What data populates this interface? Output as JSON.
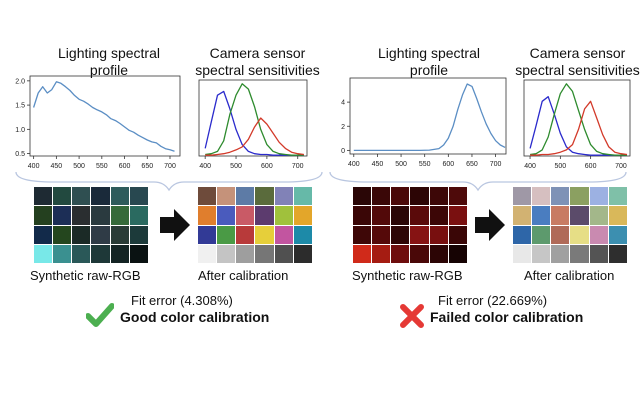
{
  "left": {
    "lighting_title": [
      "Lighting spectral",
      "profile"
    ],
    "camera_title": [
      "Camera sensor",
      "spectral sensitivities"
    ],
    "raw_label": "Synthetic raw-RGB",
    "after_label": "After calibration",
    "fit_error": "Fit error (4.308%)",
    "verdict": "Good color calibration",
    "verdict_icon": "check-mark-icon",
    "verdict_color": "#4caf50",
    "lighting_chart": {
      "type": "line",
      "x_ticks": [
        "400",
        "450",
        "500",
        "550",
        "600",
        "650",
        "700"
      ],
      "y_ticks": [
        "0.5",
        "1.0",
        "1.5",
        "2.0"
      ],
      "x": [
        400,
        410,
        420,
        430,
        440,
        450,
        460,
        470,
        480,
        490,
        500,
        510,
        520,
        530,
        540,
        550,
        560,
        570,
        580,
        590,
        600,
        610,
        620,
        630,
        640,
        650,
        660,
        670,
        680,
        690,
        700,
        710
      ],
      "y": [
        1.45,
        1.75,
        1.88,
        1.75,
        1.82,
        1.98,
        1.95,
        1.88,
        1.8,
        1.7,
        1.62,
        1.58,
        1.52,
        1.45,
        1.4,
        1.36,
        1.3,
        1.22,
        1.18,
        1.12,
        1.05,
        0.98,
        0.94,
        0.88,
        0.83,
        0.78,
        0.74,
        0.72,
        0.65,
        0.6,
        0.58,
        0.55
      ],
      "color": "#5b8ec4"
    },
    "camera_chart": {
      "type": "line",
      "x_ticks": [
        "400",
        "500",
        "600",
        "700"
      ],
      "x": [
        400,
        420,
        440,
        460,
        480,
        500,
        520,
        540,
        560,
        580,
        600,
        620,
        640,
        660,
        680,
        700,
        720
      ],
      "series": [
        {
          "color": "#2b2bcc",
          "values": [
            0.1,
            0.45,
            0.8,
            0.85,
            0.62,
            0.35,
            0.15,
            0.06,
            0.03,
            0.02,
            0.02,
            0.01,
            0.01,
            0.01,
            0.01,
            0.01,
            0.01
          ]
        },
        {
          "color": "#2e8b2e",
          "values": [
            0.02,
            0.03,
            0.06,
            0.2,
            0.55,
            0.8,
            0.95,
            0.88,
            0.65,
            0.35,
            0.15,
            0.06,
            0.03,
            0.02,
            0.01,
            0.01,
            0.01
          ]
        },
        {
          "color": "#d33a2a",
          "values": [
            0.01,
            0.01,
            0.02,
            0.03,
            0.05,
            0.08,
            0.12,
            0.22,
            0.38,
            0.5,
            0.42,
            0.3,
            0.18,
            0.1,
            0.05,
            0.03,
            0.02
          ]
        }
      ]
    },
    "raw_colors": [
      "#1e2a33",
      "#22493f",
      "#2f4f51",
      "#1a2a3a",
      "#2e5b5b",
      "#284850",
      "#24401f",
      "#1c2e56",
      "#2a2e30",
      "#2a3a3f",
      "#356a3a",
      "#2a6a60",
      "#122a4a",
      "#24461e",
      "#1b2a26",
      "#2f3b46",
      "#293b36",
      "#1c3a3a",
      "#78e8e8",
      "#3a9090",
      "#2a5858",
      "#1e3838",
      "#142424",
      "#0a1212"
    ],
    "after_colors": [
      "#6e4b3b",
      "#c5927a",
      "#5d7ba6",
      "#5a6b3c",
      "#8182b7",
      "#66b9a8",
      "#e07e2d",
      "#4a5bbd",
      "#c95a66",
      "#5c3b6e",
      "#a0c13c",
      "#e3a62a",
      "#323a96",
      "#4a9a45",
      "#b83a3a",
      "#e6cf3a",
      "#c255a0",
      "#1d8aa8",
      "#f0f0f0",
      "#c4c4c4",
      "#9e9e9e",
      "#767676",
      "#505050",
      "#2c2c2c"
    ]
  },
  "right": {
    "lighting_title": [
      "Lighting spectral",
      "profile"
    ],
    "camera_title": [
      "Camera sensor",
      "spectral sensitivities"
    ],
    "raw_label": "Synthetic raw-RGB",
    "after_label": "After calibration",
    "fit_error": "Fit error (22.669%)",
    "verdict": "Failed color calibration",
    "verdict_icon": "cross-mark-icon",
    "verdict_color": "#e53935",
    "lighting_chart": {
      "type": "line",
      "x_ticks": [
        "400",
        "450",
        "500",
        "550",
        "600",
        "650",
        "700"
      ],
      "y_ticks": [
        "0",
        "2",
        "4"
      ],
      "x": [
        400,
        420,
        440,
        460,
        480,
        500,
        520,
        540,
        560,
        580,
        590,
        600,
        610,
        620,
        630,
        640,
        650,
        660,
        670,
        680,
        690,
        700,
        710,
        720
      ],
      "y": [
        0.0,
        0.0,
        0.0,
        0.0,
        0.0,
        0.0,
        0.0,
        0.0,
        0.02,
        0.15,
        0.45,
        1.0,
        2.0,
        3.4,
        4.6,
        5.5,
        5.3,
        4.3,
        3.2,
        2.2,
        1.4,
        0.8,
        0.45,
        0.25
      ],
      "color": "#5b8ec4"
    },
    "camera_chart": {
      "type": "line",
      "x_ticks": [
        "400",
        "500",
        "600",
        "700"
      ],
      "x": [
        400,
        420,
        440,
        460,
        480,
        500,
        520,
        540,
        560,
        580,
        600,
        620,
        640,
        660,
        680,
        700,
        720
      ],
      "series": [
        {
          "color": "#2b2bcc",
          "values": [
            0.1,
            0.4,
            0.72,
            0.78,
            0.55,
            0.3,
            0.12,
            0.05,
            0.03,
            0.02,
            0.01,
            0.01,
            0.01,
            0.01,
            0.01,
            0.01,
            0.01
          ]
        },
        {
          "color": "#2e8b2e",
          "values": [
            0.02,
            0.03,
            0.08,
            0.25,
            0.55,
            0.82,
            0.95,
            0.85,
            0.6,
            0.35,
            0.15,
            0.06,
            0.03,
            0.02,
            0.01,
            0.01,
            0.01
          ]
        },
        {
          "color": "#d33a2a",
          "values": [
            0.01,
            0.01,
            0.02,
            0.02,
            0.03,
            0.05,
            0.08,
            0.15,
            0.35,
            0.62,
            0.72,
            0.5,
            0.28,
            0.12,
            0.05,
            0.03,
            0.02
          ]
        }
      ]
    },
    "raw_colors": [
      "#2a0606",
      "#3a0707",
      "#4a0808",
      "#2c0505",
      "#3d0707",
      "#4e0a0a",
      "#3a0606",
      "#520909",
      "#2a0505",
      "#5a0a0a",
      "#3c0606",
      "#7a1010",
      "#3e0707",
      "#550909",
      "#2e0505",
      "#861313",
      "#780f0f",
      "#3a0606",
      "#d02a1a",
      "#a51c12",
      "#6e0d0d",
      "#4a0808",
      "#2c0505",
      "#160303"
    ],
    "after_colors": [
      "#9f98a6",
      "#d6bfc0",
      "#7e92b6",
      "#8ba061",
      "#9cb1e2",
      "#7fc0a8",
      "#d2b272",
      "#4a7dc0",
      "#c87b63",
      "#5b4b6a",
      "#a3b78a",
      "#d9b85a",
      "#2e66a8",
      "#5d9a6d",
      "#b06a58",
      "#e6de86",
      "#c98ab0",
      "#3c8fb0",
      "#e8e8e8",
      "#c6c6c6",
      "#a0a0a0",
      "#7a7a7a",
      "#545454",
      "#2e2e2e"
    ]
  }
}
